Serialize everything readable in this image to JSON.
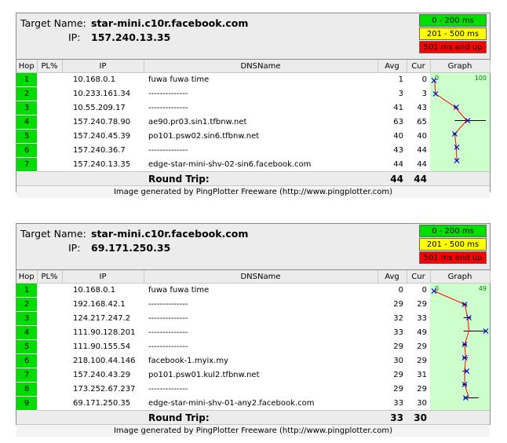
{
  "panels": [
    {
      "target_name_label": "Target Name:",
      "target_name": "star-mini.c10r.facebook.com",
      "ip_label": "IP:",
      "ip": "157.240.13.35",
      "legend": [
        "0 - 200 ms",
        "201 - 500 ms",
        "501 ms and up"
      ],
      "columns": [
        "Hop",
        "PL%",
        "IP",
        "DNSName",
        "Avg",
        "Cur",
        "Graph"
      ],
      "graph_scale_min": "0",
      "graph_scale_max": "100",
      "rows": [
        {
          "hop": "1",
          "pl": "",
          "ip": "10.168.0.1",
          "dns": "fuwa fuwa time",
          "avg": "1",
          "cur": "0"
        },
        {
          "hop": "2",
          "pl": "",
          "ip": "10.233.161.34",
          "dns": "--------------",
          "avg": "3",
          "cur": "3"
        },
        {
          "hop": "3",
          "pl": "",
          "ip": "10.55.209.17",
          "dns": "--------------",
          "avg": "41",
          "cur": "43"
        },
        {
          "hop": "4",
          "pl": "",
          "ip": "157.240.78.90",
          "dns": "ae90.pr03.sin1.tfbnw.net",
          "avg": "63",
          "cur": "65"
        },
        {
          "hop": "5",
          "pl": "",
          "ip": "157.240.45.39",
          "dns": "po101.psw02.sin6.tfbnw.net",
          "avg": "40",
          "cur": "40"
        },
        {
          "hop": "6",
          "pl": "",
          "ip": "157.240.36.7",
          "dns": "--------------",
          "avg": "43",
          "cur": "44"
        },
        {
          "hop": "7",
          "pl": "",
          "ip": "157.240.13.35",
          "dns": "edge-star-mini-shv-02-sin6.facebook.com",
          "avg": "44",
          "cur": "44"
        }
      ],
      "round_trip_label": "Round Trip:",
      "round_trip_avg": "44",
      "round_trip_cur": "44",
      "footer": "Image generated by PingPlotter Freeware (http://www.pingplotter.com)",
      "graph_max": 100,
      "graph_points": [
        {
          "avg": 1,
          "cur": 0,
          "min": 0,
          "max": 2
        },
        {
          "avg": 3,
          "cur": 3,
          "min": 2,
          "max": 4
        },
        {
          "avg": 41,
          "cur": 43,
          "min": 38,
          "max": 44
        },
        {
          "avg": 63,
          "cur": 65,
          "min": 40,
          "max": 100
        },
        {
          "avg": 40,
          "cur": 40,
          "min": 37,
          "max": 43
        },
        {
          "avg": 43,
          "cur": 44,
          "min": 41,
          "max": 45
        },
        {
          "avg": 44,
          "cur": 44,
          "min": 42,
          "max": 46
        }
      ]
    },
    {
      "target_name_label": "Target Name:",
      "target_name": "star-mini.c10r.facebook.com",
      "ip_label": "IP:",
      "ip": "69.171.250.35",
      "legend": [
        "0 - 200 ms",
        "201 - 500 ms",
        "501 ms and up"
      ],
      "columns": [
        "Hop",
        "PL%",
        "IP",
        "DNSName",
        "Avg",
        "Cur",
        "Graph"
      ],
      "graph_scale_min": "0",
      "graph_scale_max": "49",
      "rows": [
        {
          "hop": "1",
          "pl": "",
          "ip": "10.168.0.1",
          "dns": "fuwa fuwa time",
          "avg": "0",
          "cur": "0"
        },
        {
          "hop": "2",
          "pl": "",
          "ip": "192.168.42.1",
          "dns": "--------------",
          "avg": "29",
          "cur": "29"
        },
        {
          "hop": "3",
          "pl": "",
          "ip": "124.217.247.2",
          "dns": "--------------",
          "avg": "32",
          "cur": "33"
        },
        {
          "hop": "4",
          "pl": "",
          "ip": "111.90.128.201",
          "dns": "--------------",
          "avg": "33",
          "cur": "49"
        },
        {
          "hop": "5",
          "pl": "",
          "ip": "111.90.155.54",
          "dns": "--------------",
          "avg": "29",
          "cur": "29"
        },
        {
          "hop": "6",
          "pl": "",
          "ip": "218.100.44.146",
          "dns": "facebook-1.myix.my",
          "avg": "30",
          "cur": "29"
        },
        {
          "hop": "7",
          "pl": "",
          "ip": "157.240.43.29",
          "dns": "po101.psw01.kul2.tfbnw.net",
          "avg": "29",
          "cur": "31"
        },
        {
          "hop": "8",
          "pl": "",
          "ip": "173.252.67.237",
          "dns": "--------------",
          "avg": "29",
          "cur": "29"
        },
        {
          "hop": "9",
          "pl": "",
          "ip": "69.171.250.35",
          "dns": "edge-star-mini-shv-01-any2.facebook.com",
          "avg": "33",
          "cur": "30"
        }
      ],
      "round_trip_label": "Round Trip:",
      "round_trip_avg": "33",
      "round_trip_cur": "30",
      "footer": "Image generated by PingPlotter Freeware (http://www.pingplotter.com)",
      "graph_max": 49,
      "graph_points": [
        {
          "avg": 0,
          "cur": 0,
          "min": 0,
          "max": 1
        },
        {
          "avg": 29,
          "cur": 29,
          "min": 27,
          "max": 31
        },
        {
          "avg": 32,
          "cur": 33,
          "min": 28,
          "max": 35
        },
        {
          "avg": 33,
          "cur": 49,
          "min": 28,
          "max": 49
        },
        {
          "avg": 29,
          "cur": 29,
          "min": 27,
          "max": 31
        },
        {
          "avg": 30,
          "cur": 29,
          "min": 27,
          "max": 32
        },
        {
          "avg": 29,
          "cur": 31,
          "min": 27,
          "max": 31
        },
        {
          "avg": 29,
          "cur": 29,
          "min": 27,
          "max": 31
        },
        {
          "avg": 33,
          "cur": 30,
          "min": 28,
          "max": 42
        }
      ]
    }
  ],
  "colors": {
    "hop_green": "#00dc00",
    "graph_bg": "#ccffcc",
    "line_red": "#ff0000",
    "marker_blue": "#0000cc",
    "legend_green": "#00e000",
    "legend_yellow": "#ffff00",
    "legend_red": "#ff0000"
  }
}
